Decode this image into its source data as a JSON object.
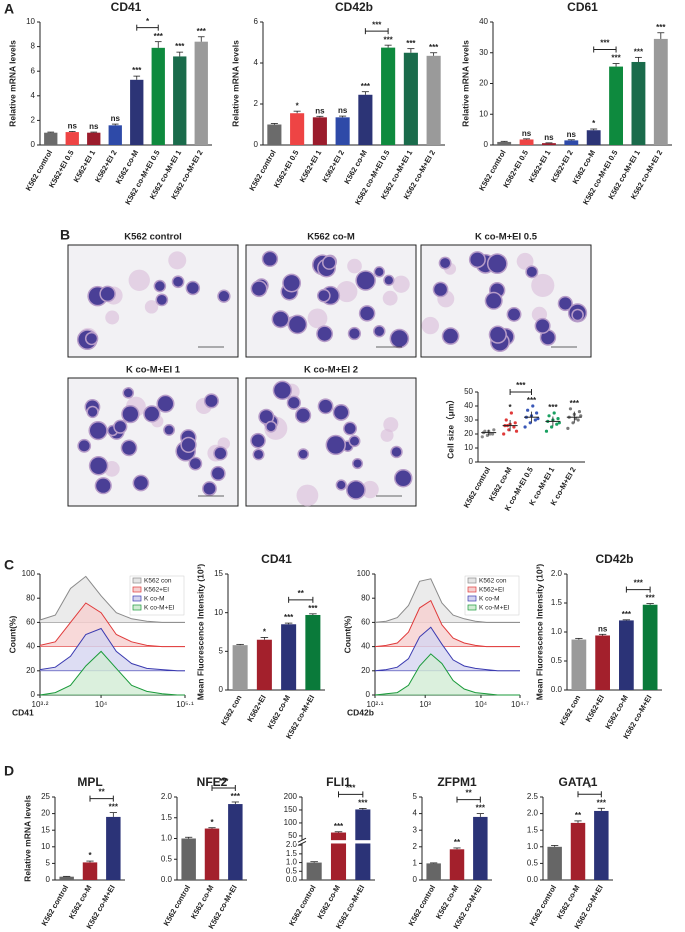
{
  "panel_labels": [
    "A",
    "B",
    "C",
    "D"
  ],
  "images": [
    {
      "title": "K562 control"
    },
    {
      "title": "K562 co-M"
    },
    {
      "title": "K co-M+EI 0.5"
    },
    {
      "title": "K co-M+EI 1"
    },
    {
      "title": "K co-M+EI 2"
    }
  ],
  "chart_data": [
    {
      "type": "bar",
      "title": "CD41",
      "ylabel": "Relative mRNA levels",
      "categories": [
        "K562 control",
        "K562+EI 0.5",
        "K562+EI 1",
        "K562+EI 2",
        "K562 co-M",
        "K562 co-M+EI 0.5",
        "K562 co-M+EI 1",
        "K562 co-M+EI 2"
      ],
      "values": [
        1.0,
        1.05,
        1.0,
        1.6,
        5.3,
        7.9,
        7.2,
        8.4
      ],
      "errors": [
        0.05,
        0.05,
        0.05,
        0.1,
        0.3,
        0.5,
        0.35,
        0.4
      ],
      "colors": [
        "#6b6b6b",
        "#ee4444",
        "#9b1c2c",
        "#2e4aa8",
        "#2c3476",
        "#0e8a3e",
        "#1a6b4b",
        "#9a9a9a"
      ],
      "significance": [
        null,
        "ns",
        "ns",
        "ns",
        "***",
        "***",
        "***",
        "***"
      ],
      "bracket": {
        "from": 4,
        "to": 5,
        "label": "*"
      },
      "ylim": [
        0,
        10
      ],
      "yticks": [
        0,
        2,
        4,
        6,
        8,
        10
      ]
    },
    {
      "type": "bar",
      "title": "CD42b",
      "ylabel": "Relative mRNA levels",
      "categories": [
        "K562 control",
        "K562+EI 0.5",
        "K562+EI 1",
        "K562+EI 2",
        "K562 co-M",
        "K562 co-M+EI 0.5",
        "K562 co-M+EI 1",
        "K562 co-M+EI 2"
      ],
      "values": [
        1.0,
        1.55,
        1.35,
        1.35,
        2.45,
        4.75,
        4.5,
        4.35
      ],
      "errors": [
        0.05,
        0.1,
        0.05,
        0.06,
        0.15,
        0.12,
        0.2,
        0.15
      ],
      "colors": [
        "#6b6b6b",
        "#ee4444",
        "#9b1c2c",
        "#2e4aa8",
        "#2c3476",
        "#0e8a3e",
        "#1a6b4b",
        "#9a9a9a"
      ],
      "significance": [
        null,
        "*",
        "ns",
        "ns",
        "***",
        "***",
        "***",
        "***"
      ],
      "bracket": {
        "from": 4,
        "to": 5,
        "label": "***"
      },
      "ylim": [
        0,
        6
      ],
      "yticks": [
        0,
        2,
        4,
        6
      ]
    },
    {
      "type": "bar",
      "title": "CD61",
      "ylabel": "Relative mRNA levels",
      "categories": [
        "K562 control",
        "K562+EI 0.5",
        "K562+EI 1",
        "K562+EI 2",
        "K562 co-M",
        "K562 co-M+EI 0.5",
        "K562 co-M+EI 1",
        "K562 co-M+EI 2"
      ],
      "values": [
        1.0,
        1.8,
        0.6,
        1.5,
        4.8,
        25.5,
        27,
        34.5
      ],
      "errors": [
        0.2,
        0.2,
        0.1,
        0.2,
        0.4,
        1.0,
        1.5,
        2.0
      ],
      "colors": [
        "#6b6b6b",
        "#ee4444",
        "#9b1c2c",
        "#2e4aa8",
        "#2c3476",
        "#0e8a3e",
        "#1a6b4b",
        "#9a9a9a"
      ],
      "significance": [
        null,
        "ns",
        "ns",
        "ns",
        "*",
        "***",
        "***",
        "***"
      ],
      "bracket": {
        "from": 4,
        "to": 5,
        "label": "***"
      },
      "ylim": [
        0,
        40
      ],
      "yticks": [
        0,
        10,
        20,
        30,
        40
      ]
    },
    {
      "type": "dotplot",
      "ylabel": "Cell size（μm）",
      "categories": [
        "K562 control",
        "K562 co-M",
        "K co-M+EI 0.5",
        "K co-M+EI 1",
        "K co-M+EI 2"
      ],
      "points": [
        [
          18,
          19,
          20,
          21,
          22,
          23,
          22,
          20
        ],
        [
          20,
          23,
          25,
          26,
          27,
          28,
          30,
          35,
          22,
          26
        ],
        [
          25,
          28,
          30,
          32,
          33,
          35,
          37,
          40,
          31
        ],
        [
          22,
          25,
          27,
          29,
          30,
          31,
          33,
          35,
          28
        ],
        [
          24,
          28,
          30,
          32,
          34,
          36,
          38,
          31,
          33
        ]
      ],
      "means": [
        21,
        26,
        32,
        29,
        32
      ],
      "errors": [
        2,
        4,
        4,
        3.5,
        4
      ],
      "colors": [
        "#8a8a8a",
        "#e03a3a",
        "#3a58b8",
        "#18a060",
        "#7a7a7a"
      ],
      "significance": [
        null,
        "*",
        "***",
        "***",
        "***"
      ],
      "bracket": {
        "from": 1,
        "to": 2,
        "label": "***"
      },
      "ylim": [
        0,
        50
      ],
      "yticks": [
        0,
        10,
        20,
        30,
        40,
        50
      ]
    },
    {
      "type": "density",
      "xlabel": "CD41",
      "ylabel": "Count(%)",
      "x": [
        3.2,
        3.4,
        3.6,
        3.8,
        4.0,
        4.2,
        4.4,
        4.6,
        4.8,
        5.0,
        5.1
      ],
      "series": [
        {
          "name": "K562 con",
          "color": "#8a8a8a",
          "fill": "#e6e6e6",
          "values": [
            2,
            6,
            28,
            38,
            22,
            8,
            3,
            1,
            0,
            0,
            0
          ]
        },
        {
          "name": "K562+EI",
          "color": "#e03a3a",
          "fill": "#f6d0d0",
          "values": [
            1,
            4,
            20,
            36,
            28,
            10,
            4,
            1,
            0,
            0,
            0
          ]
        },
        {
          "name": "K co-M",
          "color": "#3a3ab0",
          "fill": "#d4d4f0",
          "values": [
            1,
            3,
            12,
            30,
            35,
            16,
            6,
            2,
            1,
            0,
            0
          ]
        },
        {
          "name": "K co-M+EI",
          "color": "#1a9a3a",
          "fill": "#d2ecd4",
          "values": [
            0,
            2,
            8,
            24,
            36,
            22,
            8,
            3,
            1,
            0,
            0
          ]
        }
      ],
      "xlim": [
        3.2,
        5.1
      ],
      "xticks": [
        {
          "value": 3.2,
          "label": "10³·²"
        },
        {
          "value": 4,
          "label": "10⁴"
        },
        {
          "value": 5.1,
          "label": "10⁵·¹"
        }
      ],
      "ylim": [
        0,
        100
      ],
      "yticks": [
        0,
        20,
        40,
        60,
        80,
        100
      ]
    },
    {
      "type": "bar",
      "title": "CD41",
      "ylabel": "Mean Fluorescence Intensity (10³)",
      "categories": [
        "K562 con",
        "K562+EI",
        "K562 co-M",
        "K562 co-M+EI"
      ],
      "values": [
        5.8,
        6.5,
        8.5,
        9.7
      ],
      "errors": [
        0.1,
        0.3,
        0.15,
        0.15
      ],
      "colors": [
        "#9a9a9a",
        "#a3202c",
        "#2b3377",
        "#0a7a3a"
      ],
      "significance": [
        null,
        "*",
        "***",
        "***"
      ],
      "bracket": {
        "from": 2,
        "to": 3,
        "label": "**"
      },
      "ylim": [
        0,
        15
      ],
      "yticks": [
        0,
        5,
        10,
        15
      ]
    },
    {
      "type": "density",
      "xlabel": "CD42b",
      "ylabel": "Count(%)",
      "x": [
        2.1,
        2.3,
        2.5,
        2.7,
        2.9,
        3.1,
        3.3,
        3.5,
        3.7,
        3.9,
        4.1,
        4.3,
        4.5,
        4.7
      ],
      "series": [
        {
          "name": "K562 con",
          "color": "#8a8a8a",
          "fill": "#e6e6e6",
          "values": [
            0,
            1,
            4,
            14,
            34,
            36,
            16,
            6,
            3,
            1,
            0,
            0,
            0,
            0
          ]
        },
        {
          "name": "K562+EI",
          "color": "#e03a3a",
          "fill": "#f6d0d0",
          "values": [
            0,
            1,
            3,
            12,
            32,
            38,
            18,
            7,
            3,
            1,
            0,
            0,
            0,
            0
          ]
        },
        {
          "name": "K co-M",
          "color": "#3a3ab0",
          "fill": "#d4d4f0",
          "values": [
            0,
            1,
            3,
            10,
            28,
            36,
            22,
            9,
            4,
            2,
            1,
            0,
            0,
            0
          ]
        },
        {
          "name": "K co-M+EI",
          "color": "#1a9a3a",
          "fill": "#d2ecd4",
          "values": [
            0,
            1,
            2,
            8,
            24,
            34,
            26,
            12,
            5,
            2,
            1,
            0,
            0,
            0
          ]
        }
      ],
      "xlim": [
        2.1,
        4.7
      ],
      "xticks": [
        {
          "value": 2.1,
          "label": "10²·¹"
        },
        {
          "value": 3,
          "label": "10³"
        },
        {
          "value": 4,
          "label": "10⁴"
        },
        {
          "value": 4.7,
          "label": "10⁴·⁷"
        }
      ],
      "ylim": [
        0,
        100
      ],
      "yticks": [
        0,
        20,
        40,
        60,
        80,
        100
      ]
    },
    {
      "type": "bar",
      "title": "CD42b",
      "ylabel": "Mean Fluorescence Intensity (10³)",
      "categories": [
        "K562 con",
        "K562+EI",
        "K562 co-M",
        "K562 co-M+EI"
      ],
      "values": [
        0.87,
        0.94,
        1.2,
        1.47
      ],
      "errors": [
        0.02,
        0.02,
        0.01,
        0.02
      ],
      "colors": [
        "#9a9a9a",
        "#a3202c",
        "#2b3377",
        "#0a7a3a"
      ],
      "significance": [
        null,
        "ns",
        "***",
        "***"
      ],
      "bracket": {
        "from": 2,
        "to": 3,
        "label": "***"
      },
      "ylim": [
        0,
        2
      ],
      "yticks": [
        {
          "value": 0,
          "label": "0.0"
        },
        0.5,
        {
          "value": 1,
          "label": "1.0"
        },
        1.5,
        {
          "value": 2,
          "label": "2.0"
        }
      ]
    },
    {
      "type": "bar",
      "title": "MPL",
      "ylabel": "Relative mRNA levels",
      "categories": [
        "K562 control",
        "K562 co-M",
        "K562 co-M+EI"
      ],
      "values": [
        1.0,
        5.3,
        19.0
      ],
      "errors": [
        0.1,
        0.4,
        1.3
      ],
      "colors": [
        "#666666",
        "#a3202c",
        "#2b3377"
      ],
      "significance": [
        null,
        "*",
        "***"
      ],
      "bracket": {
        "from": 1,
        "to": 2,
        "label": "**"
      },
      "ylim": [
        0,
        25
      ],
      "yticks": [
        0,
        5,
        10,
        15,
        20,
        25
      ]
    },
    {
      "type": "bar",
      "title": "NFE2",
      "categories": [
        "K562 control",
        "K562 co-M",
        "K562 co-M+EI"
      ],
      "values": [
        1.0,
        1.24,
        1.83
      ],
      "errors": [
        0.03,
        0.02,
        0.05
      ],
      "colors": [
        "#666666",
        "#a3202c",
        "#2b3377"
      ],
      "significance": [
        null,
        "*",
        "***"
      ],
      "bracket": {
        "from": 1,
        "to": 2,
        "label": "***"
      },
      "ylim": [
        0,
        2
      ],
      "yticks": [
        {
          "value": 0,
          "label": "0.0"
        },
        0.5,
        {
          "value": 1,
          "label": "1.0"
        },
        1.5,
        {
          "value": 2,
          "label": "2.0"
        }
      ]
    },
    {
      "type": "bar",
      "title": "FLI1",
      "categories": [
        "K562 control",
        "K562 co-M",
        "K562 co-M+EI"
      ],
      "values": [
        1.0,
        63,
        152
      ],
      "errors": [
        0.05,
        3,
        4
      ],
      "colors": [
        "#666666",
        "#a3202c",
        "#2b3377"
      ],
      "significance": [
        null,
        "***",
        "***"
      ],
      "bracket": {
        "from": 1,
        "to": 2,
        "label": "***"
      },
      "ylim": [
        0,
        200
      ],
      "axis_break": {
        "lower": [
          0,
          2
        ],
        "upper": [
          40,
          200
        ]
      },
      "yticks": [
        {
          "value": 0,
          "label": "0.0"
        },
        0.5,
        {
          "value": 1,
          "label": "1.0"
        },
        1.5,
        {
          "value": 2,
          "label": "2.0"
        },
        50,
        100,
        150,
        200
      ]
    },
    {
      "type": "bar",
      "title": "ZFPM1",
      "categories": [
        "K562 control",
        "K562 co-M",
        "K562 co-M+EI"
      ],
      "values": [
        1.0,
        1.85,
        3.8
      ],
      "errors": [
        0.03,
        0.08,
        0.2
      ],
      "colors": [
        "#666666",
        "#a3202c",
        "#2b3377"
      ],
      "significance": [
        null,
        "**",
        "***"
      ],
      "bracket": {
        "from": 1,
        "to": 2,
        "label": "**"
      },
      "ylim": [
        0,
        5
      ],
      "yticks": [
        0,
        1,
        2,
        3,
        4,
        5
      ]
    },
    {
      "type": "bar",
      "title": "GATA1",
      "categories": [
        "K562 control",
        "K562 co-M",
        "K562 co-M+EI"
      ],
      "values": [
        1.0,
        1.72,
        2.08
      ],
      "errors": [
        0.04,
        0.06,
        0.08
      ],
      "colors": [
        "#666666",
        "#a3202c",
        "#2b3377"
      ],
      "significance": [
        null,
        "**",
        "***"
      ],
      "bracket": {
        "from": 1,
        "to": 2,
        "label": "*"
      },
      "ylim": [
        0,
        2.5
      ],
      "yticks": [
        {
          "value": 0,
          "label": "0.0"
        },
        0.5,
        {
          "value": 1,
          "label": "1.0"
        },
        1.5,
        {
          "value": 2,
          "label": "2.0"
        },
        2.5
      ]
    }
  ]
}
